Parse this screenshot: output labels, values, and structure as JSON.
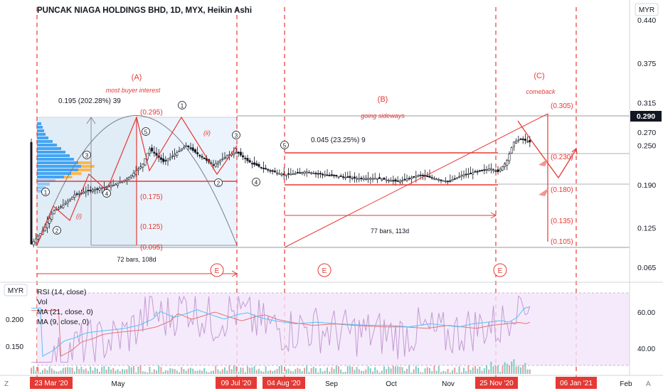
{
  "header": {
    "symbol_title": "PUNCAK NIAGA HOLDINGS BHD, 1D, MYX, Heikin Ashi",
    "currency": "MYR"
  },
  "price_axis": {
    "ticks": [
      "0.440",
      "0.375",
      "0.315",
      "0.290",
      "0.270",
      "0.250",
      "0.190",
      "0.125",
      "0.065"
    ],
    "tick_values": [
      0.44,
      0.375,
      0.315,
      0.29,
      0.27,
      0.25,
      0.19,
      0.125,
      0.065
    ],
    "last_price": "0.290",
    "last_price_color": "#131722"
  },
  "annotations": {
    "wave_a_label": "(A)",
    "wave_a_note": "most buyer interest",
    "wave_b_label": "(B)",
    "wave_b_note": "going sideways",
    "wave_c_label": "(C)",
    "wave_c_note": "comeback",
    "measure_left_text": "0.195 (202.28%) 39",
    "measure_mid_text": "0.045 (23.25%) 9",
    "bars_left_text": "72 bars, 108d",
    "bars_mid_text": "77 bars, 113d",
    "sub_wave_i": "(i)",
    "sub_wave_ii": "(ii)",
    "level_labels": [
      "(0.295)",
      "(0.175)",
      "(0.125)",
      "(0.095)",
      "(0.305)",
      "(0.230)",
      "(0.180)",
      "(0.135)",
      "(0.105)"
    ],
    "level_values": [
      0.295,
      0.175,
      0.125,
      0.095,
      0.305,
      0.23,
      0.18,
      0.135,
      0.105
    ],
    "circle_labels": [
      "1",
      "2",
      "3",
      "4",
      "5"
    ],
    "event_marker": "E",
    "annotation_color": "#e53935"
  },
  "indicator_panel": {
    "currency": "MYR",
    "legend": [
      "RSI (14, close)",
      "Vol",
      "MA (21, close, 0)",
      "MA (9, close, 0)"
    ],
    "left_ticks": [
      "0.200",
      "0.150"
    ],
    "right_ticks": [
      "60.00",
      "40.00"
    ]
  },
  "time_axis": {
    "labels": [
      "May",
      "Sep",
      "Oct",
      "Nov",
      "Feb"
    ],
    "highlighted_dates": [
      "23 Mar '20",
      "09 Jul '20",
      "04 Aug '20",
      "25 Nov '20",
      "06 Jan '21"
    ],
    "corner_left": "Z",
    "corner_right": "A"
  },
  "chart_data": {
    "type": "candlestick",
    "title": "PUNCAK NIAGA HOLDINGS BHD, 1D, MYX, Heikin Ashi",
    "ylabel": "MYR",
    "ylim": [
      0.05,
      0.45
    ],
    "series_close_approx": [
      {
        "date": "23 Mar '20",
        "price": 0.095
      },
      {
        "date": "Apr '20",
        "price": 0.16
      },
      {
        "date": "May '20",
        "price": 0.195
      },
      {
        "date": "Jun '20",
        "price": 0.245
      },
      {
        "date": "09 Jul '20",
        "price": 0.23
      },
      {
        "date": "04 Aug '20",
        "price": 0.21
      },
      {
        "date": "Sep '20",
        "price": 0.205
      },
      {
        "date": "Oct '20",
        "price": 0.2
      },
      {
        "date": "Nov '20",
        "price": 0.205
      },
      {
        "date": "25 Nov '20",
        "price": 0.23
      },
      {
        "date": "Dec '20",
        "price": 0.29
      }
    ]
  }
}
